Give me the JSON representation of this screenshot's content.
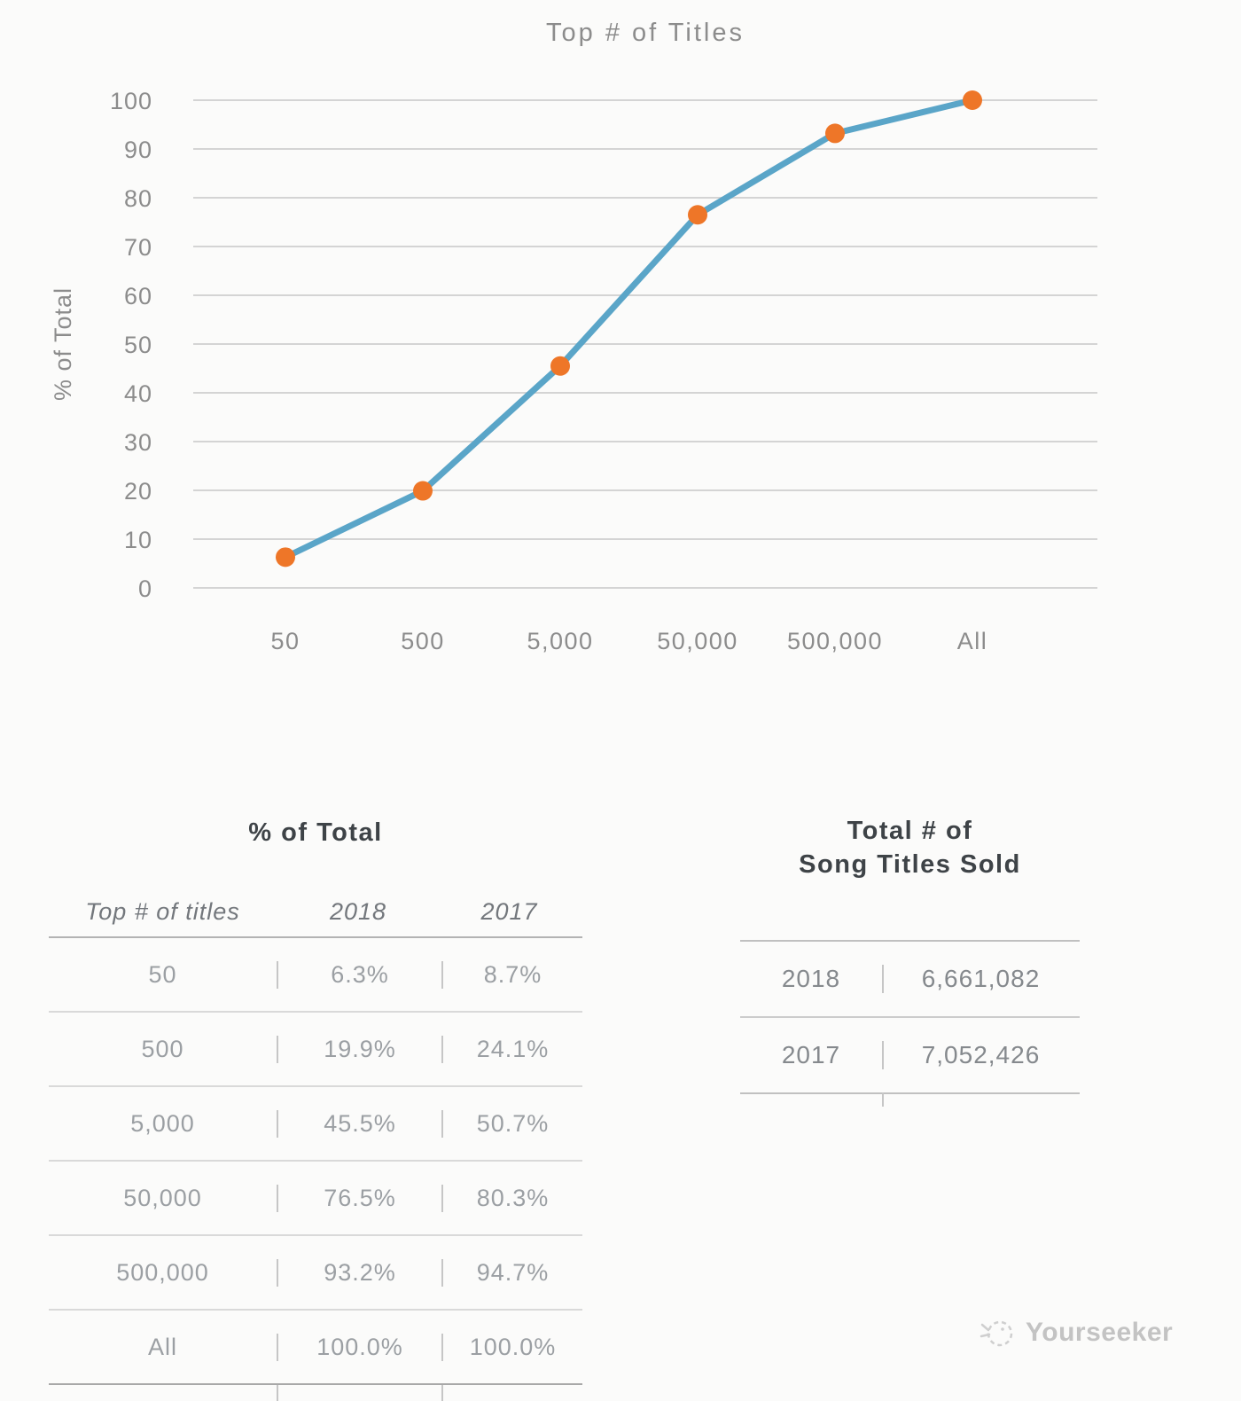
{
  "chart_data": {
    "type": "line",
    "title": "Top # of Titles",
    "xlabel": "",
    "ylabel": "% of Total",
    "categories": [
      "50",
      "500",
      "5,000",
      "50,000",
      "500,000",
      "All"
    ],
    "series": [
      {
        "name": "2018",
        "values": [
          6.3,
          19.9,
          45.5,
          76.5,
          93.2,
          100.0
        ]
      }
    ],
    "ylim": [
      0,
      100
    ],
    "ytick_step": 10,
    "grid": true,
    "legend": "none",
    "line_color": "#5AA5C8",
    "marker_color": "#EE7628"
  },
  "left_table": {
    "title": "% of Total",
    "headers": [
      "Top # of titles",
      "2018",
      "2017"
    ],
    "rows": [
      [
        "50",
        "6.3%",
        "8.7%"
      ],
      [
        "500",
        "19.9%",
        "24.1%"
      ],
      [
        "5,000",
        "45.5%",
        "50.7%"
      ],
      [
        "50,000",
        "76.5%",
        "80.3%"
      ],
      [
        "500,000",
        "93.2%",
        "94.7%"
      ],
      [
        "All",
        "100.0%",
        "100.0%"
      ]
    ]
  },
  "right_table": {
    "title_line1": "Total # of",
    "title_line2": "Song Titles Sold",
    "rows": [
      [
        "2018",
        "6,661,082"
      ],
      [
        "2017",
        "7,052,426"
      ]
    ]
  },
  "watermark": {
    "label": "Yourseeker"
  }
}
